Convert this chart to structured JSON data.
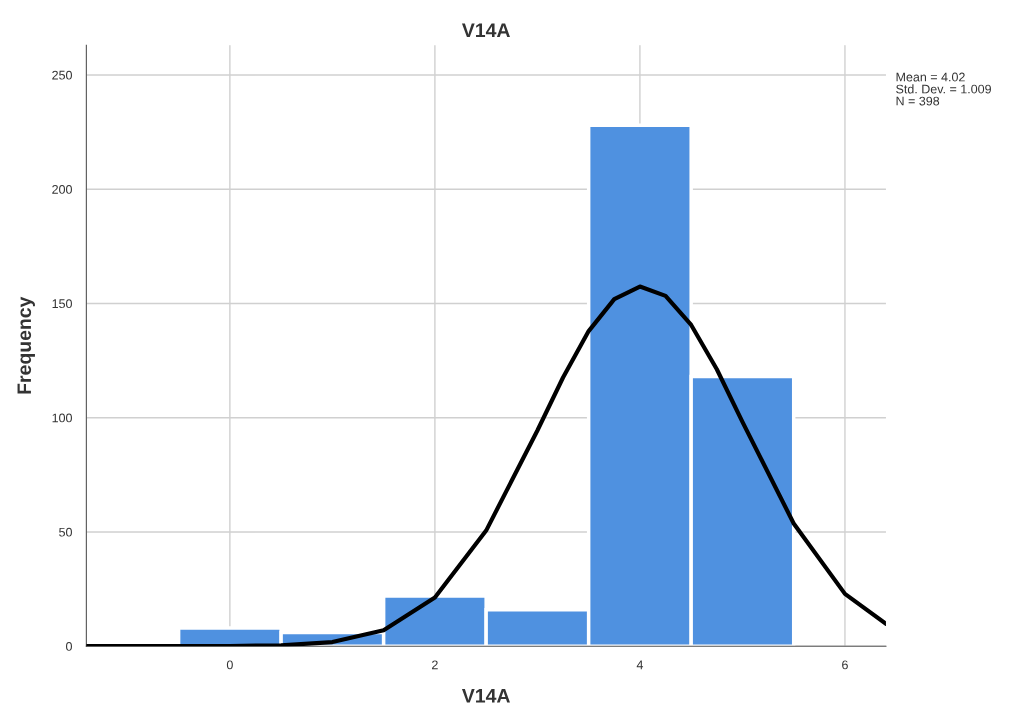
{
  "chart_data": {
    "type": "histogram",
    "title": "V14A",
    "xlabel": "V14A",
    "ylabel": "Frequency",
    "bins": [
      -0.5,
      0.5,
      1.5,
      2.5,
      3.5,
      4.5,
      5.5
    ],
    "values": [
      8,
      6,
      22,
      16,
      228,
      118
    ],
    "color": "#4f91e0",
    "series": [
      {
        "type": "line",
        "color": "#000000",
        "x": [
          -1.4,
          0,
          0.5,
          1,
          1.5,
          2,
          2.5,
          3,
          3.25,
          3.5,
          3.75,
          4,
          4.25,
          4.5,
          4.75,
          5,
          5.5,
          6,
          6.4
        ],
        "values": [
          0,
          0.1,
          0.4,
          1.8,
          7,
          21.3,
          50.6,
          94.4,
          117.6,
          137.9,
          151.9,
          157.4,
          153.3,
          140.6,
          121.2,
          98.2,
          53.7,
          22.9,
          9.8
        ]
      }
    ],
    "xlim": [
      -1.4,
      6.4
    ],
    "ylim": [
      0,
      263
    ],
    "xticks": [
      0,
      2,
      4,
      6
    ],
    "yticks": [
      0,
      50,
      100,
      150,
      200,
      250
    ],
    "grid": true,
    "annotations": [
      "Mean = 4.02",
      "Std. Dev. = 1.009",
      "N = 398"
    ]
  }
}
